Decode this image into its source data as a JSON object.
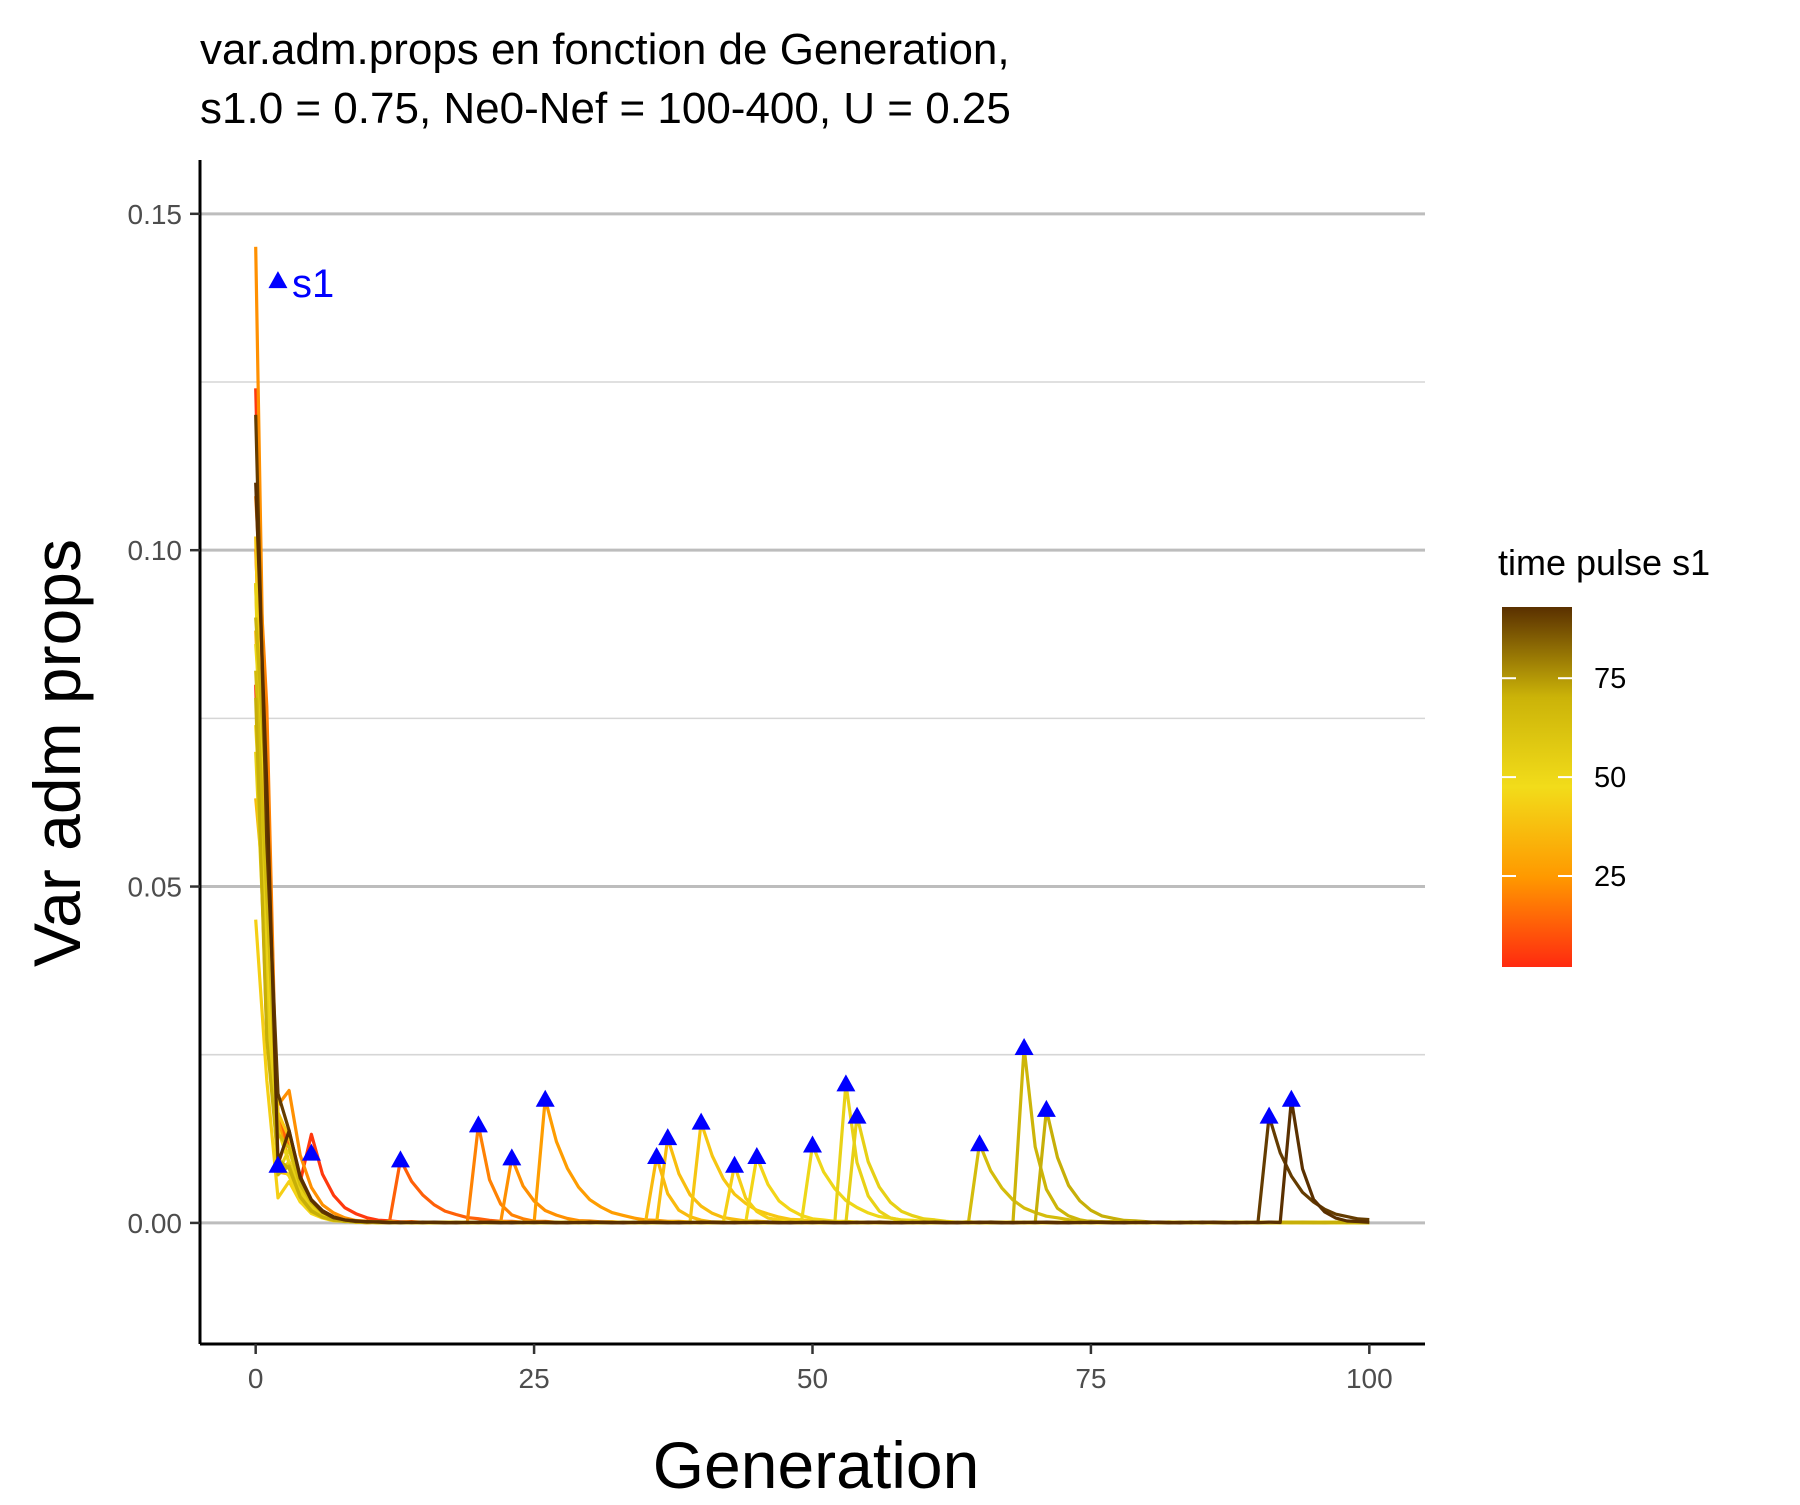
{
  "chart_data": {
    "type": "line",
    "title_line1": "var.adm.props en fonction de Generation,",
    "title_line2": "s1.0 = 0.75, Ne0-Nef = 100-400, U = 0.25",
    "xlabel": "Generation",
    "ylabel": "Var adm props",
    "xlim": [
      -5,
      105
    ],
    "ylim": [
      -0.018,
      0.158
    ],
    "x_ticks": [
      0,
      25,
      50,
      75,
      100
    ],
    "x_tick_labels": [
      "0",
      "25",
      "50",
      "75",
      "100"
    ],
    "y_ticks": [
      0.0,
      0.05,
      0.1,
      0.15
    ],
    "y_tick_labels": [
      "0.00",
      "0.05",
      "0.10",
      "0.15"
    ],
    "y_minor_gridlines": [
      0.025,
      0.075,
      0.125
    ],
    "grid": "horizontal",
    "annotation": {
      "text": "s1",
      "x": 2,
      "y": 0.14,
      "color": "#0000ff",
      "marker": "triangle"
    },
    "marker_color": "#0000ff",
    "legend": {
      "title": "time pulse s1",
      "type": "colorbar",
      "placement": "right",
      "range": [
        2,
        93
      ],
      "ticks": [
        25,
        50,
        75
      ],
      "tick_labels": [
        "25",
        "50",
        "75"
      ],
      "colors": [
        "#ff2a10",
        "#ff9900",
        "#f2dc1a",
        "#cbb308",
        "#5a3000"
      ]
    },
    "series": [
      {
        "pulse": 2,
        "peak_var": 0.0085,
        "initial_var": 0.08
      },
      {
        "pulse": 5,
        "peak_var": 0.0103,
        "initial_var": 0.124
      },
      {
        "pulse": 13,
        "peak_var": 0.0093,
        "initial_var": 0.1
      },
      {
        "pulse": 20,
        "peak_var": 0.0145,
        "initial_var": 0.108
      },
      {
        "pulse": 23,
        "peak_var": 0.0096,
        "initial_var": 0.145
      },
      {
        "pulse": 26,
        "peak_var": 0.0183,
        "initial_var": 0.095
      },
      {
        "pulse": 36,
        "peak_var": 0.0098,
        "initial_var": 0.088
      },
      {
        "pulse": 37,
        "peak_var": 0.0126,
        "initial_var": 0.063
      },
      {
        "pulse": 40,
        "peak_var": 0.0149,
        "initial_var": 0.102
      },
      {
        "pulse": 43,
        "peak_var": 0.0085,
        "initial_var": 0.045
      },
      {
        "pulse": 45,
        "peak_var": 0.0098,
        "initial_var": 0.074
      },
      {
        "pulse": 50,
        "peak_var": 0.0115,
        "initial_var": 0.086
      },
      {
        "pulse": 53,
        "peak_var": 0.0206,
        "initial_var": 0.095
      },
      {
        "pulse": 54,
        "peak_var": 0.0158,
        "initial_var": 0.07
      },
      {
        "pulse": 65,
        "peak_var": 0.0117,
        "initial_var": 0.082
      },
      {
        "pulse": 69,
        "peak_var": 0.026,
        "initial_var": 0.09
      },
      {
        "pulse": 71,
        "peak_var": 0.0168,
        "initial_var": 0.078
      },
      {
        "pulse": 91,
        "peak_var": 0.0158,
        "initial_var": 0.12
      },
      {
        "pulse": 93,
        "peak_var": 0.0183,
        "initial_var": 0.11
      }
    ]
  }
}
